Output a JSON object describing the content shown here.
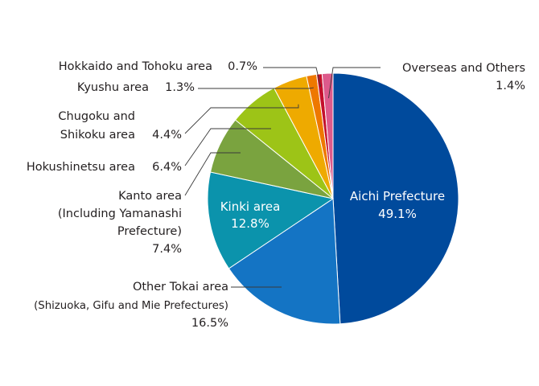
{
  "chart_data": {
    "type": "pie",
    "title": "",
    "start": "12 o'clock",
    "direction": "clockwise",
    "legend": "none",
    "slices": [
      {
        "name": "Aichi Prefecture",
        "value": 49.1,
        "value_label": "49.1%",
        "color": "#004a9c"
      },
      {
        "name": "Other Tokai area",
        "sublabel": "(Shizuoka, Gifu and Mie Prefectures)",
        "value": 16.5,
        "value_label": "16.5%",
        "color": "#1474c4"
      },
      {
        "name": "Kinki area",
        "value": 12.8,
        "value_label": "12.8%",
        "color": "#0b93ac"
      },
      {
        "name_lines": [
          "Kanto area",
          "(Including Yamanashi",
          "Prefecture)"
        ],
        "value": 7.4,
        "value_label": "7.4%",
        "color": "#7aa33f"
      },
      {
        "name": "Hokushinetsu area",
        "value": 6.4,
        "value_label": "6.4%",
        "color": "#9dc417"
      },
      {
        "name_lines": [
          "Chugoku and",
          "Shikoku area"
        ],
        "value": 4.4,
        "value_label": "4.4%",
        "color": "#eeaa00"
      },
      {
        "name": "Kyushu area",
        "value": 1.3,
        "value_label": "1.3%",
        "color": "#ee7800"
      },
      {
        "name": "Hokkaido and Tohoku area",
        "value": 0.7,
        "value_label": "0.7%",
        "color": "#c4102b"
      },
      {
        "name": "Overseas and Others",
        "value": 1.4,
        "value_label": "1.4%",
        "color": "#dd5a8b"
      }
    ]
  }
}
